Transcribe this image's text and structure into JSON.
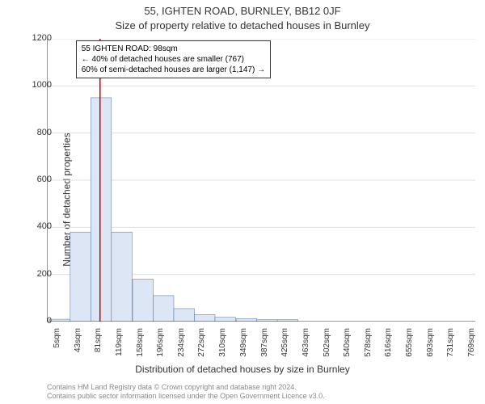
{
  "title_main": "55, IGHTEN ROAD, BURNLEY, BB12 0JF",
  "title_sub": "Size of property relative to detached houses in Burnley",
  "ylabel": "Number of detached properties",
  "xlabel": "Distribution of detached houses by size in Burnley",
  "chart": {
    "type": "histogram",
    "ymax": 1200,
    "ytick_step": 200,
    "yticks": [
      0,
      200,
      400,
      600,
      800,
      1000,
      1200
    ],
    "xticks_sqm": [
      5,
      43,
      81,
      119,
      158,
      196,
      234,
      272,
      310,
      349,
      387,
      425,
      463,
      502,
      540,
      578,
      616,
      655,
      693,
      731,
      769
    ],
    "xmin_sqm": 0,
    "xmax_sqm": 790,
    "bar_fill": "#dce6f5",
    "bar_stroke": "#4a6fa5",
    "grid_color": "#e0e0e0",
    "axis_color": "#333333",
    "marker_color": "#cc0000",
    "marker_sqm": 98,
    "bars": [
      {
        "x_sqm": 5,
        "count": 10
      },
      {
        "x_sqm": 43,
        "count": 380
      },
      {
        "x_sqm": 81,
        "count": 950
      },
      {
        "x_sqm": 119,
        "count": 380
      },
      {
        "x_sqm": 158,
        "count": 180
      },
      {
        "x_sqm": 196,
        "count": 110
      },
      {
        "x_sqm": 234,
        "count": 55
      },
      {
        "x_sqm": 272,
        "count": 30
      },
      {
        "x_sqm": 310,
        "count": 18
      },
      {
        "x_sqm": 349,
        "count": 12
      },
      {
        "x_sqm": 387,
        "count": 8
      },
      {
        "x_sqm": 425,
        "count": 8
      }
    ],
    "bar_width_sqm": 38
  },
  "info_box": {
    "line1": "55 IGHTEN ROAD: 98sqm",
    "line2": "← 40% of detached houses are smaller (767)",
    "line3": "60% of semi-detached houses are larger (1,147) →"
  },
  "attribution": {
    "line1": "Contains HM Land Registry data © Crown copyright and database right 2024.",
    "line2": "Contains public sector information licensed under the Open Government Licence v3.0."
  }
}
